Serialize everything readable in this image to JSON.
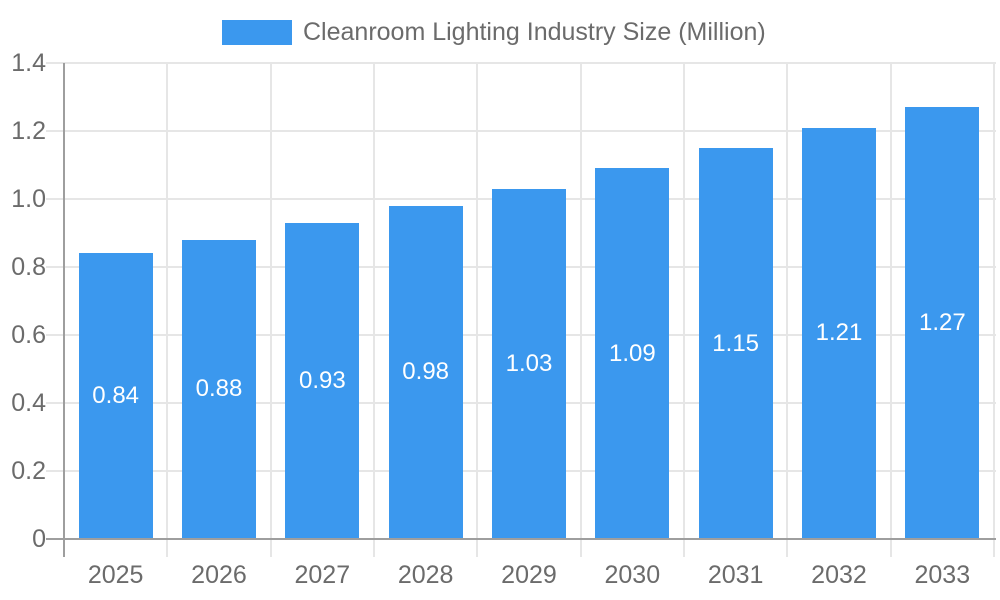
{
  "legend": {
    "label": "Cleanroom Lighting Industry Size (Million)"
  },
  "chart_data": {
    "type": "bar",
    "title": "Cleanroom Lighting Industry Size (Million)",
    "categories": [
      "2025",
      "2026",
      "2027",
      "2028",
      "2029",
      "2030",
      "2031",
      "2032",
      "2033"
    ],
    "values": [
      0.84,
      0.88,
      0.93,
      0.98,
      1.03,
      1.09,
      1.15,
      1.21,
      1.27
    ],
    "bar_labels": [
      "0.84",
      "0.88",
      "0.93",
      "0.98",
      "1.03",
      "1.09",
      "1.15",
      "1.21",
      "1.27"
    ],
    "xlabel": "",
    "ylabel": "",
    "ylim": [
      0,
      1.4
    ],
    "ytick_labels": [
      "0",
      "0.2",
      "0.4",
      "0.6",
      "0.8",
      "1.0",
      "1.2",
      "1.4"
    ],
    "grid": true,
    "legend_position": "top-center",
    "colors": {
      "bar": "#3b98ee",
      "bar_label_text": "#ffffff",
      "gridline": "#e6e6e6",
      "axis_line": "#9e9e9e",
      "tick_label": "#6b6b6b",
      "legend_text": "#6b6b6b",
      "background": "#ffffff"
    }
  }
}
